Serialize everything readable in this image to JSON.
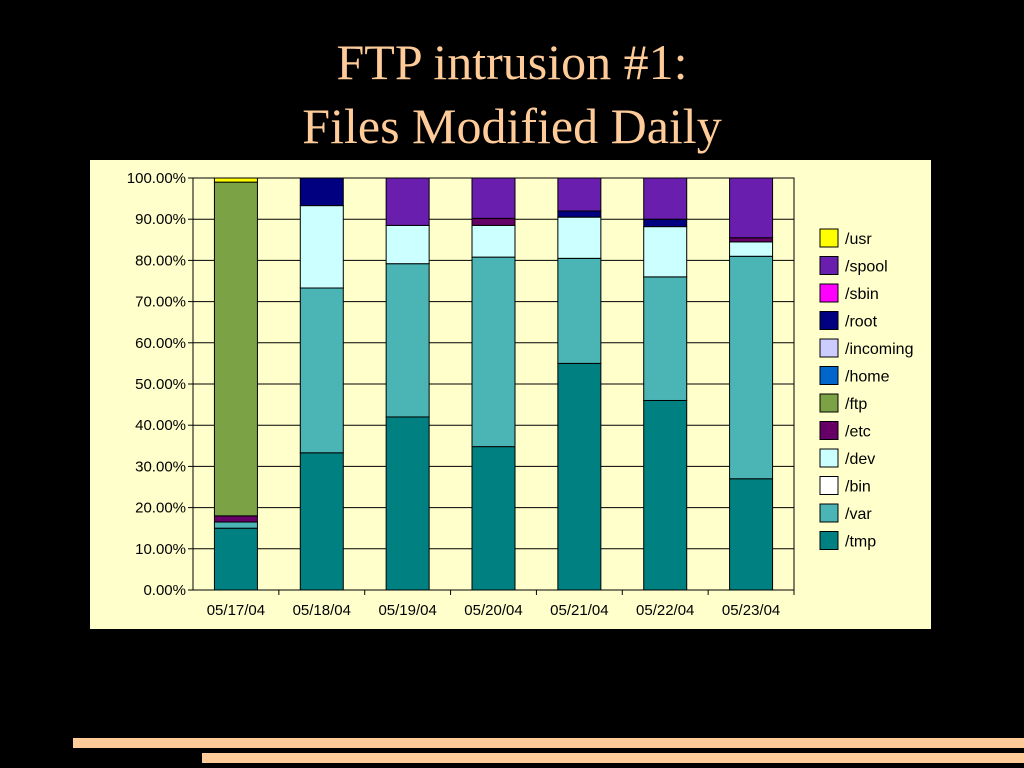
{
  "slide": {
    "title_line1": "FTP intrusion #1:",
    "title_line2": "Files Modified Daily"
  },
  "colors": {
    "background": "#000000",
    "title": "#FFCC99",
    "chart_background": "#FFFFCC",
    "decor_bar": "#FFCC99"
  },
  "chart_data": {
    "type": "bar",
    "stacked": true,
    "normalized": "percent",
    "title": "",
    "xlabel": "",
    "ylabel": "",
    "ylim": [
      0,
      100
    ],
    "y_ticks": [
      "0.00%",
      "10.00%",
      "20.00%",
      "30.00%",
      "40.00%",
      "50.00%",
      "60.00%",
      "70.00%",
      "80.00%",
      "90.00%",
      "100.00%"
    ],
    "grid": true,
    "legend_position": "right",
    "categories": [
      "05/17/04",
      "05/18/04",
      "05/19/04",
      "05/20/04",
      "05/21/04",
      "05/22/04",
      "05/23/04"
    ],
    "series": [
      {
        "name": "/tmp",
        "color": "#008080",
        "values": [
          15,
          33.3,
          42,
          34.8,
          55,
          46,
          27
        ]
      },
      {
        "name": "/var",
        "color": "#4BB5B5",
        "values": [
          1.5,
          40,
          37.2,
          46,
          25.5,
          30,
          54
        ]
      },
      {
        "name": "/bin",
        "color": "#FFFFFF",
        "values": [
          0,
          0,
          0,
          0,
          0,
          0,
          0
        ]
      },
      {
        "name": "/dev",
        "color": "#CCFFFF",
        "values": [
          0,
          20,
          9.3,
          7.7,
          10,
          12.2,
          3.5
        ]
      },
      {
        "name": "/etc",
        "color": "#660066",
        "values": [
          1.5,
          0,
          0,
          1.7,
          0,
          0,
          1
        ]
      },
      {
        "name": "/ftp",
        "color": "#7BA346",
        "values": [
          81,
          0,
          0,
          0,
          0,
          0,
          0
        ]
      },
      {
        "name": "/home",
        "color": "#0066CC",
        "values": [
          0,
          0,
          0,
          0,
          0,
          0,
          0
        ]
      },
      {
        "name": "/incoming",
        "color": "#CCCCFF",
        "values": [
          0,
          0,
          0,
          0,
          0,
          0,
          0
        ]
      },
      {
        "name": "/root",
        "color": "#000080",
        "values": [
          0,
          6.7,
          0,
          0,
          1.5,
          1.8,
          0
        ]
      },
      {
        "name": "/sbin",
        "color": "#FF00FF",
        "values": [
          0,
          0,
          0,
          0,
          0,
          0,
          0
        ]
      },
      {
        "name": "/spool",
        "color": "#6A1EAE",
        "values": [
          0,
          0,
          11.5,
          9.8,
          8,
          10,
          14.5
        ]
      },
      {
        "name": "/usr",
        "color": "#FFFF00",
        "values": [
          1,
          0,
          0,
          0,
          0,
          0,
          0
        ]
      }
    ]
  }
}
